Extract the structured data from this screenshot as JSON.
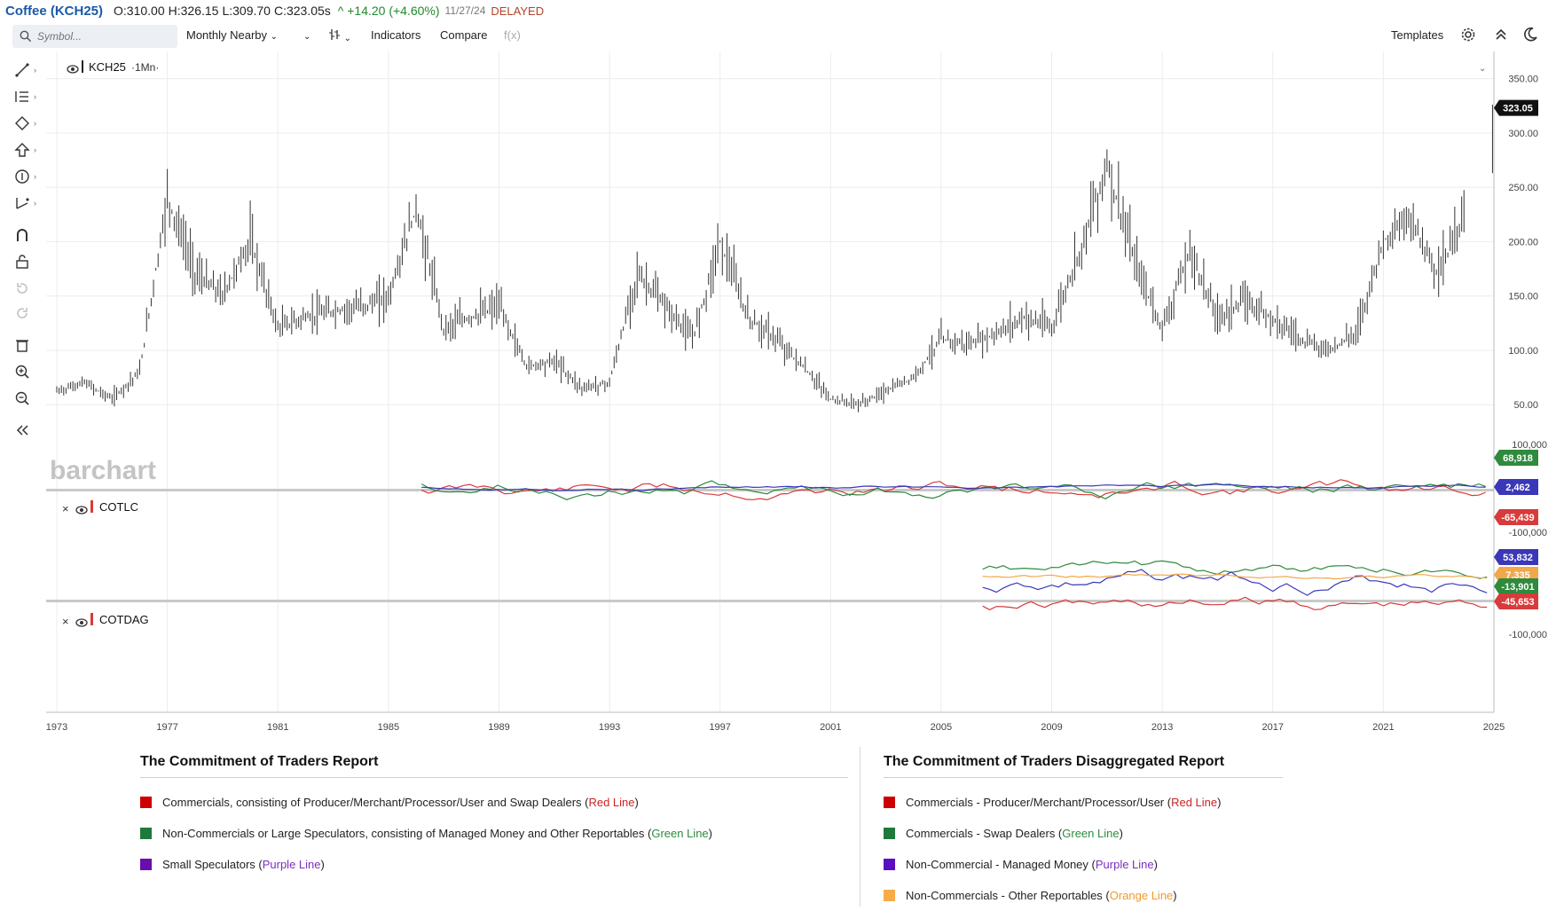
{
  "quote": {
    "title": "Coffee (KCH25)",
    "open": "O:310.00",
    "high": "H:326.15",
    "low": "L:309.70",
    "close": "C:323.05s",
    "change": "^ +14.20 (+4.60%)",
    "date": "11/27/24",
    "status": "DELAYED"
  },
  "toolbar": {
    "symbol_placeholder": "Symbol...",
    "period": "Monthly Nearby",
    "indicators": "Indicators",
    "compare": "Compare",
    "fx": "f(x)",
    "templates": "Templates"
  },
  "main_pane": {
    "series_label": "KCH25",
    "interval": "·1Mn·",
    "watermark": "barchart",
    "last_price": "323.05",
    "y_ticks": [
      "350.00",
      "300.00",
      "250.00",
      "200.00",
      "150.00",
      "100.00",
      "50.00"
    ]
  },
  "cot_pane": {
    "label": "COTLC",
    "y_ticks": [
      "100,000",
      "-100,000"
    ],
    "badges": [
      {
        "text": "68,918",
        "color": "#2f8a3d"
      },
      {
        "text": "2,462",
        "color": "#3a37b8"
      },
      {
        "text": "-65,439",
        "color": "#d83b3b"
      }
    ]
  },
  "disagg_pane": {
    "label": "COTDAG",
    "y_ticks": [
      "-100,000"
    ],
    "badges": [
      {
        "text": "53,832",
        "color": "#3a37b8"
      },
      {
        "text": "7,335",
        "color": "#f2a84a"
      },
      {
        "text": "-13,901",
        "color": "#2f8a3d"
      },
      {
        "text": "-45,653",
        "color": "#d83b3b"
      }
    ]
  },
  "x_axis": [
    "1973",
    "1977",
    "1981",
    "1985",
    "1989",
    "1993",
    "1997",
    "2001",
    "2005",
    "2009",
    "2013",
    "2017",
    "2021",
    "2025"
  ],
  "legend_cot": {
    "title": "The Commitment of Traders Report",
    "items": [
      {
        "text": "Commercials, consisting of Producer/Merchant/Processor/User and Swap Dealers (",
        "color_word": "Red Line",
        "close": ")",
        "color": "#cc0000",
        "text_color": "#cc2222"
      },
      {
        "text": "Non-Commercials or Large Speculators, consisting of Managed Money and Other Reportables (",
        "color_word": "Green Line",
        "close": ")",
        "color": "#1f7a3a",
        "text_color": "#2e8b3e"
      },
      {
        "text": "Small Speculators (",
        "color_word": "Purple Line",
        "close": ")",
        "color": "#6a0dad",
        "text_color": "#7a2fc0"
      }
    ]
  },
  "legend_disagg": {
    "title": "The Commitment of Traders Disaggregated Report",
    "items": [
      {
        "text": "Commercials - Producer/Merchant/Processor/User (",
        "color_word": "Red Line",
        "close": ")",
        "color": "#cc0000",
        "text_color": "#cc2222"
      },
      {
        "text": "Commercials - Swap Dealers (",
        "color_word": "Green Line",
        "close": ")",
        "color": "#1f7a3a",
        "text_color": "#2e8b3e"
      },
      {
        "text": "Non-Commercial - Managed Money (",
        "color_word": "Purple Line",
        "close": ")",
        "color": "#5a0fc0",
        "text_color": "#7a2fc0"
      },
      {
        "text": "Non-Commercials - Other Reportables (",
        "color_word": "Orange Line",
        "close": ")",
        "color": "#f6ac4a",
        "text_color": "#f19a2a"
      }
    ]
  },
  "chart_data": {
    "type": "bar",
    "title": "Coffee (KCH25)",
    "xlabel": "",
    "ylabel": "",
    "x_range": [
      1973,
      2025
    ],
    "ylim": [
      20,
      375
    ],
    "x": [
      1973,
      1974,
      1975,
      1976,
      1977,
      1978,
      1979,
      1980,
      1981,
      1982,
      1983,
      1984,
      1985,
      1986,
      1987,
      1988,
      1989,
      1990,
      1991,
      1992,
      1993,
      1994,
      1995,
      1996,
      1997,
      1998,
      1999,
      2000,
      2001,
      2002,
      2003,
      2004,
      2005,
      2006,
      2007,
      2008,
      2009,
      2010,
      2011,
      2012,
      2013,
      2014,
      2015,
      2016,
      2017,
      2018,
      2019,
      2020,
      2021,
      2022,
      2023,
      2024
    ],
    "values": [
      62,
      70,
      55,
      80,
      240,
      170,
      150,
      200,
      120,
      130,
      135,
      140,
      148,
      230,
      120,
      130,
      140,
      85,
      90,
      65,
      70,
      170,
      140,
      110,
      200,
      130,
      110,
      85,
      55,
      50,
      62,
      75,
      110,
      105,
      115,
      130,
      120,
      190,
      270,
      180,
      120,
      190,
      130,
      145,
      130,
      110,
      100,
      115,
      200,
      220,
      170,
      230
    ],
    "last": 323.05
  }
}
